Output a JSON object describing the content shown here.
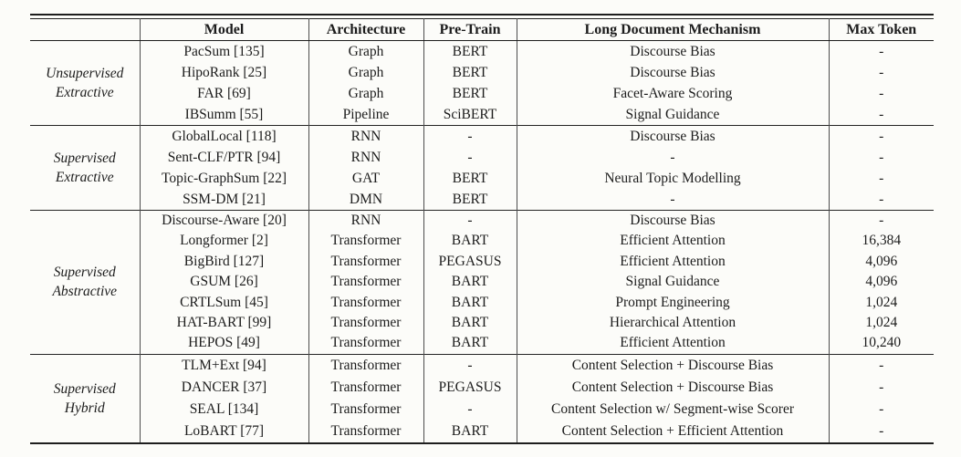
{
  "colors": {
    "paper_background": "#fcfcf9",
    "ink": "#1c1c1c",
    "rule": "#1e1e1e"
  },
  "table": {
    "headers": {
      "group": "",
      "model": "Model",
      "architecture": "Architecture",
      "pretrain": "Pre-Train",
      "mechanism": "Long Document Mechanism",
      "max_token": "Max Token"
    },
    "groups": [
      {
        "label": "Unsupervised Extractive",
        "label_lines": [
          "Unsupervised",
          "Extractive"
        ],
        "rows": [
          {
            "model": "PacSum [135]",
            "architecture": "Graph",
            "pretrain": "BERT",
            "mechanism": "Discourse Bias",
            "max_token": "-"
          },
          {
            "model": "HipoRank [25]",
            "architecture": "Graph",
            "pretrain": "BERT",
            "mechanism": "Discourse Bias",
            "max_token": "-"
          },
          {
            "model": "FAR [69]",
            "architecture": "Graph",
            "pretrain": "BERT",
            "mechanism": "Facet-Aware Scoring",
            "max_token": "-"
          },
          {
            "model": "IBSumm [55]",
            "architecture": "Pipeline",
            "pretrain": "SciBERT",
            "mechanism": "Signal Guidance",
            "max_token": "-"
          }
        ]
      },
      {
        "label": "Supervised Extractive",
        "label_lines": [
          "Supervised",
          "Extractive"
        ],
        "rows": [
          {
            "model": "GlobalLocal [118]",
            "architecture": "RNN",
            "pretrain": "-",
            "mechanism": "Discourse Bias",
            "max_token": "-"
          },
          {
            "model": "Sent-CLF/PTR [94]",
            "architecture": "RNN",
            "pretrain": "-",
            "mechanism": "-",
            "max_token": "-"
          },
          {
            "model": "Topic-GraphSum [22]",
            "architecture": "GAT",
            "pretrain": "BERT",
            "mechanism": "Neural Topic Modelling",
            "max_token": "-"
          },
          {
            "model": "SSM-DM [21]",
            "architecture": "DMN",
            "pretrain": "BERT",
            "mechanism": "-",
            "max_token": "-"
          }
        ]
      },
      {
        "label": "Supervised Abstractive",
        "label_lines": [
          "Supervised",
          "Abstractive"
        ],
        "rows": [
          {
            "model": "Discourse-Aware [20]",
            "architecture": "RNN",
            "pretrain": "-",
            "mechanism": "Discourse Bias",
            "max_token": "-"
          },
          {
            "model": "Longformer [2]",
            "architecture": "Transformer",
            "pretrain": "BART",
            "mechanism": "Efficient Attention",
            "max_token": "16,384"
          },
          {
            "model": "BigBird [127]",
            "architecture": "Transformer",
            "pretrain": "PEGASUS",
            "mechanism": "Efficient Attention",
            "max_token": "4,096"
          },
          {
            "model": "GSUM [26]",
            "architecture": "Transformer",
            "pretrain": "BART",
            "mechanism": "Signal Guidance",
            "max_token": "4,096"
          },
          {
            "model": "CRTLSum [45]",
            "architecture": "Transformer",
            "pretrain": "BART",
            "mechanism": "Prompt Engineering",
            "max_token": "1,024"
          },
          {
            "model": "HAT-BART [99]",
            "architecture": "Transformer",
            "pretrain": "BART",
            "mechanism": "Hierarchical Attention",
            "max_token": "1,024"
          },
          {
            "model": "HEPOS [49]",
            "architecture": "Transformer",
            "pretrain": "BART",
            "mechanism": "Efficient Attention",
            "max_token": "10,240"
          }
        ]
      },
      {
        "label": "Supervised Hybrid",
        "label_lines": [
          "Supervised",
          "Hybrid"
        ],
        "rows": [
          {
            "model": "TLM+Ext [94]",
            "architecture": "Transformer",
            "pretrain": "-",
            "mechanism": "Content Selection + Discourse Bias",
            "max_token": "-"
          },
          {
            "model": "DANCER [37]",
            "architecture": "Transformer",
            "pretrain": "PEGASUS",
            "mechanism": "Content Selection + Discourse Bias",
            "max_token": "-"
          },
          {
            "model": "SEAL [134]",
            "architecture": "Transformer",
            "pretrain": "-",
            "mechanism": "Content Selection w/ Segment-wise Scorer",
            "max_token": "-"
          },
          {
            "model": "LoBART [77]",
            "architecture": "Transformer",
            "pretrain": "BART",
            "mechanism": "Content Selection + Efficient Attention",
            "max_token": "-"
          }
        ]
      }
    ]
  }
}
